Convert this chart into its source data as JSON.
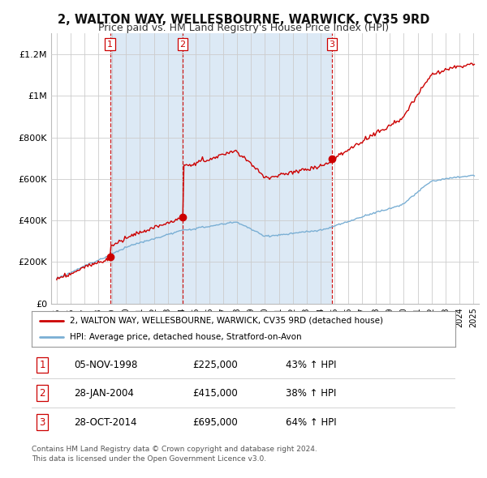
{
  "title": "2, WALTON WAY, WELLESBOURNE, WARWICK, CV35 9RD",
  "subtitle": "Price paid vs. HM Land Registry's House Price Index (HPI)",
  "title_fontsize": 10.5,
  "subtitle_fontsize": 9,
  "background_color": "#ffffff",
  "plot_bg_color": "#ffffff",
  "shade_color": "#dce9f5",
  "grid_color": "#cccccc",
  "sale_color": "#cc0000",
  "hpi_color": "#7aafd4",
  "vline_color": "#cc0000",
  "sale_dates": [
    1998.85,
    2004.07,
    2014.83
  ],
  "sale_prices": [
    225000,
    415000,
    695000
  ],
  "sale_labels": [
    "1",
    "2",
    "3"
  ],
  "sale_table": [
    [
      "1",
      "05-NOV-1998",
      "£225,000",
      "43% ↑ HPI"
    ],
    [
      "2",
      "28-JAN-2004",
      "£415,000",
      "38% ↑ HPI"
    ],
    [
      "3",
      "28-OCT-2014",
      "£695,000",
      "64% ↑ HPI"
    ]
  ],
  "legend_line1": "2, WALTON WAY, WELLESBOURNE, WARWICK, CV35 9RD (detached house)",
  "legend_line2": "HPI: Average price, detached house, Stratford-on-Avon",
  "footer1": "Contains HM Land Registry data © Crown copyright and database right 2024.",
  "footer2": "This data is licensed under the Open Government Licence v3.0.",
  "ylim": [
    0,
    1300000
  ],
  "yticks": [
    0,
    200000,
    400000,
    600000,
    800000,
    1000000,
    1200000
  ],
  "ytick_labels": [
    "£0",
    "£200K",
    "£400K",
    "£600K",
    "£800K",
    "£1M",
    "£1.2M"
  ],
  "xmin": 1994.6,
  "xmax": 2025.4
}
